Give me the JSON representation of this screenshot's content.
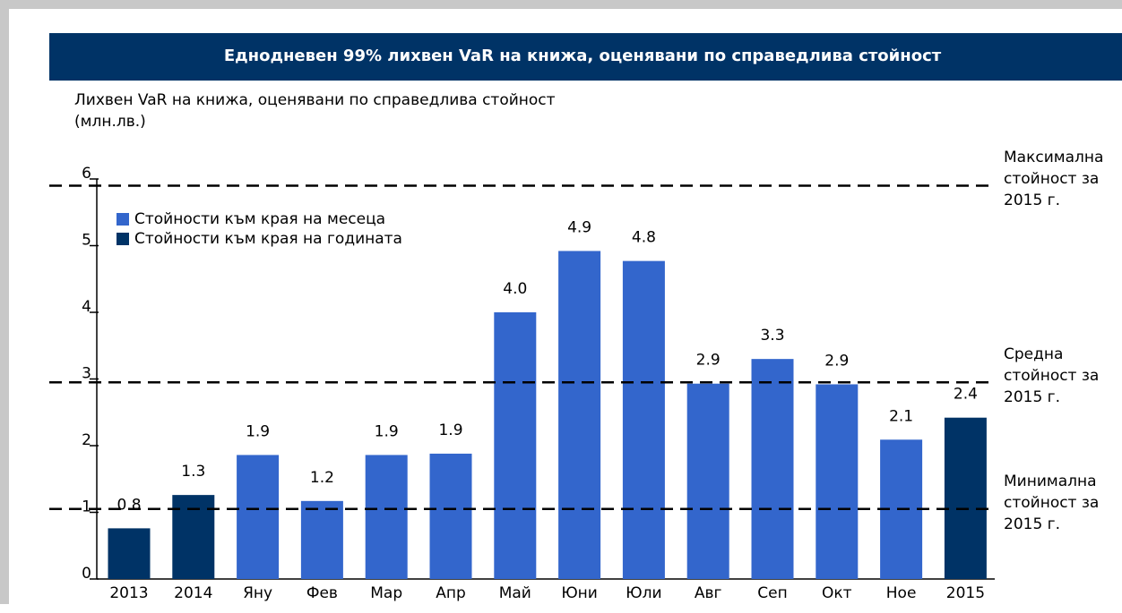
{
  "chart_data": {
    "type": "bar",
    "title": "Еднодневен 99% лихвен VaR на книжа, оценявани по справедлива стойност",
    "y_label": "Лихвен VaR на книжа, оценявани по справедлива стойност (млн.лв.)",
    "categories": [
      "2013",
      "2014",
      "Яну",
      "Фев",
      "Мар",
      "Апр",
      "Май",
      "Юни",
      "Юли",
      "Авг",
      "Сеп",
      "Окт",
      "Ное",
      "2015"
    ],
    "values": [
      0.76,
      1.26,
      1.86,
      1.17,
      1.86,
      1.88,
      4.0,
      4.92,
      4.77,
      2.93,
      3.3,
      2.92,
      2.09,
      2.42
    ],
    "value_labels": [
      "0.8",
      "1.3",
      "1.9",
      "1.2",
      "1.9",
      "1.9",
      "4.0",
      "4.9",
      "4.8",
      "2.9",
      "3.3",
      "2.9",
      "2.1",
      "2.4"
    ],
    "colors": [
      "#003366",
      "#003366",
      "#3366cc",
      "#3366cc",
      "#3366cc",
      "#3366cc",
      "#3366cc",
      "#3366cc",
      "#3366cc",
      "#3366cc",
      "#3366cc",
      "#3366cc",
      "#3366cc",
      "#003366"
    ],
    "legend": [
      {
        "name": "Стойности към края на месеца",
        "color": "#3366cc"
      },
      {
        "name": "Стойности към края на годината",
        "color": "#003366"
      }
    ],
    "reference_lines": [
      {
        "label": "Максимална стойност за 2015 г.",
        "value": 5.9
      },
      {
        "label": "Средна стойност за 2015 г.",
        "value": 2.95
      },
      {
        "label": "Минимална стойност за 2015 г.",
        "value": 1.05
      }
    ],
    "ylim": [
      0,
      6
    ],
    "yticks": [
      0,
      1,
      2,
      3,
      4,
      5,
      6
    ]
  }
}
